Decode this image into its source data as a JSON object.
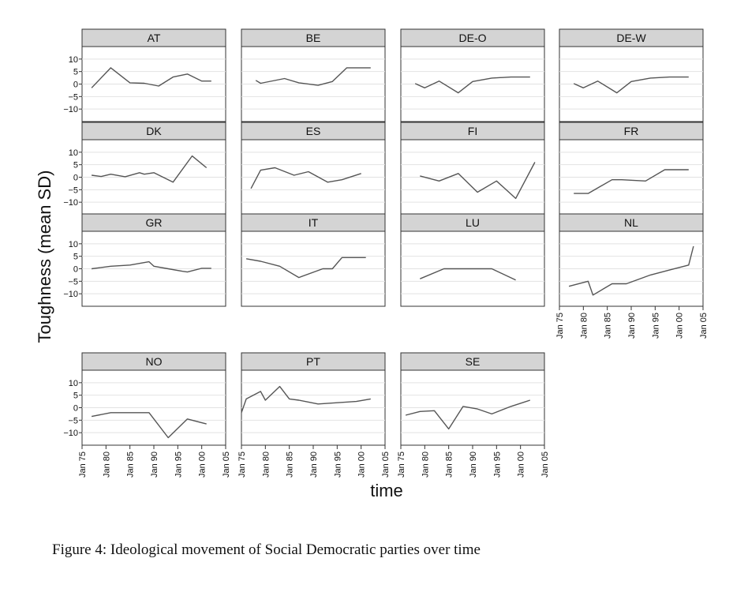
{
  "figure": {
    "caption": "Figure 4: Ideological movement of Social Democratic parties over time"
  },
  "chart_data": {
    "type": "line",
    "layout": "faceted small multiples, 4 columns",
    "xlabel": "time",
    "ylabel": "Toughness (mean SD)",
    "x_ticks": [
      "Jan 75",
      "Jan 80",
      "Jan 85",
      "Jan 90",
      "Jan 95",
      "Jan 00",
      "Jan 05"
    ],
    "y_tick_labels": [
      "−10",
      "−5",
      "0",
      "5",
      "10"
    ],
    "xlim": [
      1975,
      2005
    ],
    "ylim": [
      -15,
      15
    ],
    "y_ticks": [
      -10,
      -5,
      0,
      5,
      10
    ],
    "grid": true,
    "line_color": "#555555",
    "strip_color": "#d4d4d4",
    "panels": [
      {
        "name": "AT",
        "x": [
          1977,
          1981,
          1985,
          1988,
          1991,
          1994,
          1997,
          2000,
          2002
        ],
        "y": [
          -1.5,
          6.5,
          0.5,
          0.3,
          -0.8,
          2.8,
          4.0,
          1.2,
          1.2
        ]
      },
      {
        "name": "BE",
        "x": [
          1978,
          1979,
          1984,
          1987,
          1991,
          1994,
          1997,
          1999,
          2002
        ],
        "y": [
          1.5,
          0.3,
          2.2,
          0.5,
          -0.5,
          1.0,
          6.5,
          6.5,
          6.5
        ]
      },
      {
        "name": "DE-O",
        "x": [
          1978,
          1980,
          1983,
          1987,
          1990,
          1994,
          1998,
          2002
        ],
        "y": [
          0.2,
          -1.5,
          1.2,
          -3.5,
          1.0,
          2.4,
          2.8,
          2.8
        ]
      },
      {
        "name": "DE-W",
        "x": [
          1978,
          1980,
          1983,
          1987,
          1990,
          1994,
          1998,
          2002
        ],
        "y": [
          0.2,
          -1.5,
          1.2,
          -3.5,
          1.0,
          2.4,
          2.8,
          2.8
        ]
      },
      {
        "name": "DK",
        "x": [
          1977,
          1979,
          1981,
          1984,
          1987,
          1988,
          1990,
          1994,
          1998,
          2001
        ],
        "y": [
          0.8,
          0.3,
          1.2,
          0.2,
          1.8,
          1.2,
          1.8,
          -2.0,
          8.5,
          3.8
        ]
      },
      {
        "name": "ES",
        "x": [
          1977,
          1979,
          1982,
          1986,
          1989,
          1993,
          1996,
          2000
        ],
        "y": [
          -4.5,
          2.8,
          3.8,
          0.8,
          2.2,
          -2.0,
          -1.0,
          1.5
        ]
      },
      {
        "name": "FI",
        "x": [
          1979,
          1983,
          1987,
          1991,
          1995,
          1999,
          2003
        ],
        "y": [
          0.5,
          -1.5,
          1.5,
          -6.0,
          -1.5,
          -8.5,
          6.0
        ]
      },
      {
        "name": "FR",
        "x": [
          1978,
          1981,
          1986,
          1988,
          1993,
          1997,
          2002
        ],
        "y": [
          -6.5,
          -6.5,
          -1.0,
          -1.0,
          -1.5,
          3.0,
          3.0
        ]
      },
      {
        "name": "GR",
        "x": [
          1977,
          1981,
          1985,
          1989,
          1990,
          1993,
          1996,
          1997,
          2000,
          2002
        ],
        "y": [
          0.0,
          1.0,
          1.5,
          2.8,
          1.0,
          0.0,
          -1.0,
          -1.3,
          0.2,
          0.2
        ]
      },
      {
        "name": "IT",
        "x": [
          1976,
          1979,
          1983,
          1987,
          1992,
          1994,
          1996,
          2001
        ],
        "y": [
          4.0,
          3.0,
          1.0,
          -3.5,
          0.0,
          0.0,
          4.5,
          4.5
        ]
      },
      {
        "name": "LU",
        "x": [
          1979,
          1984,
          1989,
          1994,
          1999
        ],
        "y": [
          -4.0,
          0.0,
          0.0,
          0.0,
          -4.5
        ]
      },
      {
        "name": "NL",
        "x": [
          1977,
          1981,
          1982,
          1986,
          1989,
          1994,
          1998,
          2002,
          2003
        ],
        "y": [
          -7.0,
          -5.0,
          -10.5,
          -6.0,
          -6.0,
          -2.5,
          -0.5,
          1.5,
          9.0
        ]
      },
      {
        "name": "NO",
        "x": [
          1977,
          1981,
          1985,
          1989,
          1993,
          1997,
          2001
        ],
        "y": [
          -3.5,
          -2.0,
          -2.0,
          -2.0,
          -12.0,
          -4.5,
          -6.5
        ]
      },
      {
        "name": "PT",
        "x": [
          1975,
          1976,
          1979,
          1980,
          1983,
          1985,
          1987,
          1991,
          1995,
          1999,
          2002
        ],
        "y": [
          -2.0,
          3.5,
          6.5,
          3.0,
          8.5,
          3.5,
          3.0,
          1.5,
          2.0,
          2.5,
          3.5
        ]
      },
      {
        "name": "SE",
        "x": [
          1976,
          1979,
          1982,
          1985,
          1988,
          1991,
          1994,
          1998,
          2002
        ],
        "y": [
          -3.0,
          -1.5,
          -1.2,
          -8.5,
          0.5,
          -0.5,
          -2.5,
          0.5,
          3.0
        ]
      }
    ]
  }
}
